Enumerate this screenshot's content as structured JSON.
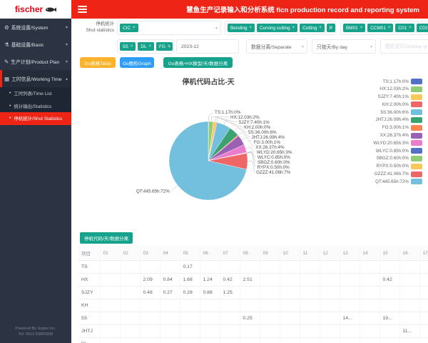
{
  "logo": {
    "brand": "fischer"
  },
  "icons": {
    "close": "×",
    "caret_down": "▾",
    "caret_up": "▴",
    "bullet": "•",
    "gear": "⚙",
    "basic": "⚗",
    "plan": "✎",
    "calendar": "▦"
  },
  "header": {
    "title": "慧鱼生产记录输入和分析系统 ficn production record and reporting system"
  },
  "sidebar": {
    "items": [
      {
        "label": "系统设置/System"
      },
      {
        "label": "基础设置/Basic"
      },
      {
        "label": "生产计划/Product Plan"
      },
      {
        "label": "工时信息/Working Time"
      }
    ],
    "subitems": [
      {
        "label": "工时列表/Time List"
      },
      {
        "label": "统计输出/Statistics"
      },
      {
        "label": "停机统计/Shut Statistics"
      }
    ],
    "footer_line1": "Powered By Supes Inc.",
    "footer_line2": "Tel: 0512-53869998"
  },
  "filters": {
    "label_line1": "停机统计",
    "label_line2": "Shut statistics",
    "select_class": {
      "tags": [
        "CIC"
      ]
    },
    "select_type": {
      "tags": [
        "Bending",
        "Curving cutting",
        "Cutting",
        "P"
      ]
    },
    "select_machine": {
      "tags": [
        "BM01",
        "CCM01",
        "C01",
        "C02"
      ]
    },
    "select_code": {
      "tags": [
        "5S",
        "DL",
        "FG"
      ]
    },
    "date_value": "2023-12",
    "select_separate": "数据分离/Separate",
    "select_byday": "只按天/By day",
    "graph_placeholder": "图形显示/Display graph"
  },
  "buttons": [
    {
      "label": "Go表格Table",
      "color": "#fbb32b"
    },
    {
      "label": "Go图形Graph",
      "color": "#2e9df6"
    },
    {
      "label": "Go表格+HX换型/天/数据分离",
      "color": "#17a28b"
    }
  ],
  "chart_data": {
    "type": "pie",
    "title": "停机代码占比-天",
    "unit": "h",
    "legend_position": "right",
    "label_format": "name:valueh:pct",
    "series": [
      {
        "name": "TS",
        "value": 1.17,
        "pct": "0%"
      },
      {
        "name": "HX",
        "value": 12.03,
        "pct": "2%"
      },
      {
        "name": "SJZY",
        "value": 7.4,
        "pct": "1%"
      },
      {
        "name": "KH",
        "value": 2.0,
        "pct": "0%"
      },
      {
        "name": "5S",
        "value": 36.0,
        "pct": "6%"
      },
      {
        "name": "JHTJ",
        "value": 26.09,
        "pct": "4%"
      },
      {
        "name": "FG",
        "value": 3.0,
        "pct": "1%"
      },
      {
        "name": "XX",
        "value": 26.37,
        "pct": "4%"
      },
      {
        "name": "WLYD",
        "value": 20.65,
        "pct": "3%"
      },
      {
        "name": "WLYC",
        "value": 0.85,
        "pct": "0%"
      },
      {
        "name": "SBGZ",
        "value": 0.6,
        "pct": "0%"
      },
      {
        "name": "RYPX",
        "value": 0.5,
        "pct": "0%"
      },
      {
        "name": "GZZZ",
        "value": 41.06,
        "pct": "7%"
      },
      {
        "name": "QT",
        "value": 445.65,
        "pct": "72%"
      }
    ],
    "palette": [
      "#5470c6",
      "#91cc75",
      "#fac858",
      "#ee6666",
      "#73c0de",
      "#3ba272",
      "#fc8452",
      "#9a60b4",
      "#ea7ccc"
    ]
  },
  "table": {
    "badge": "停机代码/天/数据分离",
    "columns": [
      "项目",
      "01",
      "02",
      "03",
      "04",
      "05",
      "06",
      "07",
      "08",
      "09",
      "10",
      "11",
      "12",
      "13",
      "14",
      "15",
      "16",
      "17"
    ],
    "rows": [
      {
        "name": "TS",
        "cells": {
          "05": "0.17"
        }
      },
      {
        "name": "HX",
        "cells": {
          "03": "2.09",
          "04": "0.84",
          "05": "1.68",
          "06": "1.24",
          "07": "0.42",
          "08": "2.51",
          "15": "0.42"
        }
      },
      {
        "name": "SJZY",
        "cells": {
          "03": "0.48",
          "04": "0.27",
          "05": "0.28",
          "06": "0.88",
          "07": "1.25"
        }
      },
      {
        "name": "KH",
        "cells": {}
      },
      {
        "name": "5S",
        "cells": {
          "08": "0.25",
          "13": "14...",
          "15": "19..."
        }
      },
      {
        "name": "JHTJ",
        "cells": {
          "16": "11..."
        }
      },
      {
        "name": "DL",
        "cells": {}
      }
    ]
  }
}
